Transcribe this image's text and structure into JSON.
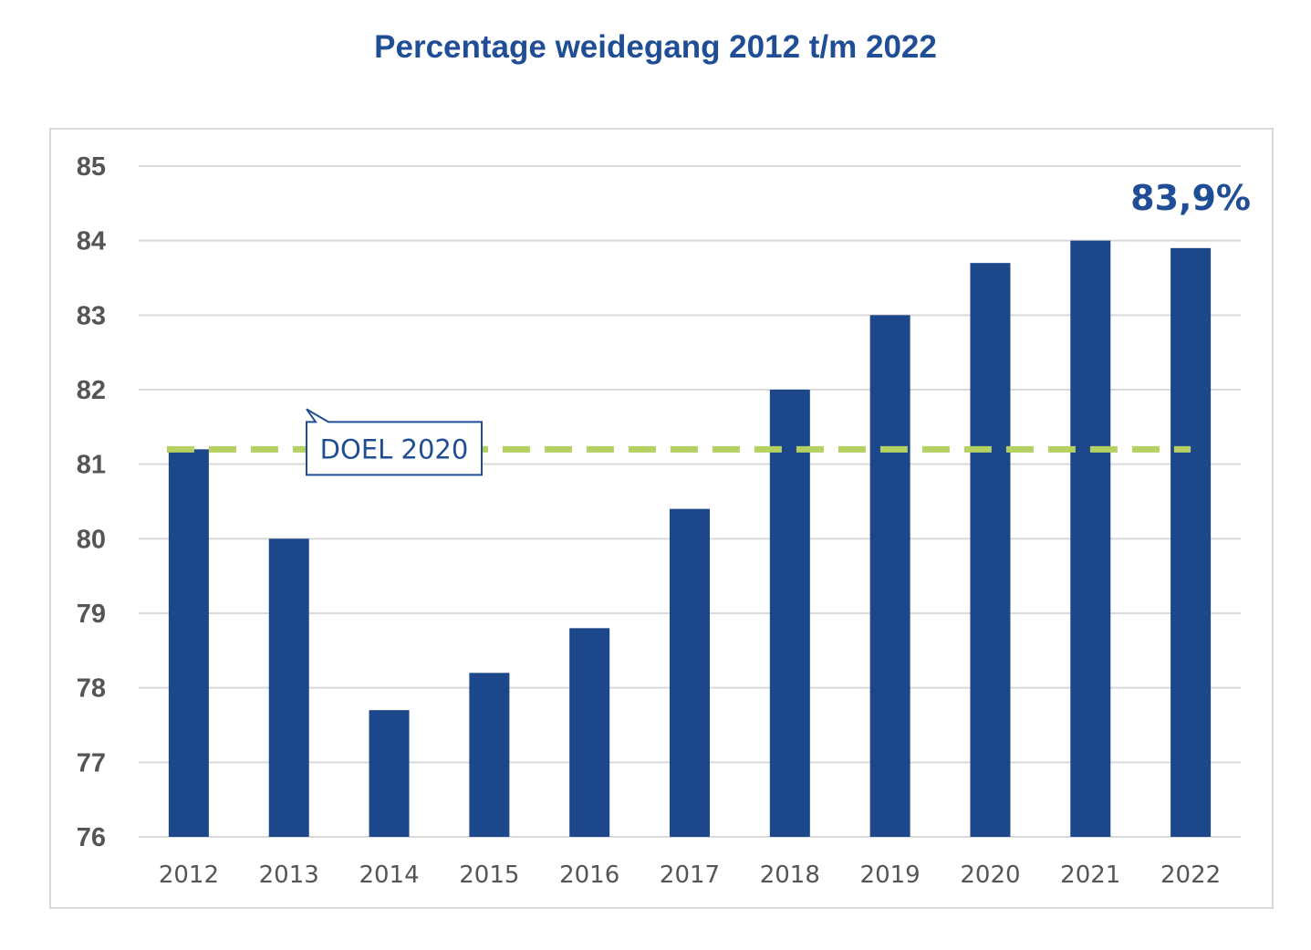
{
  "colors": {
    "bar": "#1c478b",
    "target_line": "#b4d162",
    "title": "#1f4e96",
    "grid": "#d9d9d9",
    "tick_text": "#555555"
  },
  "chart_data": {
    "type": "bar",
    "title": "Percentage weidegang 2012 t/m 2022",
    "xlabel": "",
    "ylabel": "",
    "categories": [
      "2012",
      "2013",
      "2014",
      "2015",
      "2016",
      "2017",
      "2018",
      "2019",
      "2020",
      "2021",
      "2022"
    ],
    "values": [
      81.2,
      80.0,
      77.7,
      78.2,
      78.8,
      80.4,
      82.0,
      83.0,
      83.7,
      84.0,
      83.9
    ],
    "ylim": [
      76,
      85
    ],
    "yticks": [
      76,
      77,
      78,
      79,
      80,
      81,
      82,
      83,
      84,
      85
    ],
    "grid": true,
    "target_line": {
      "label": "DOEL 2020",
      "value": 81.2,
      "style": "dashed"
    },
    "annotation": {
      "category": "2022",
      "text": "83,9%"
    }
  }
}
